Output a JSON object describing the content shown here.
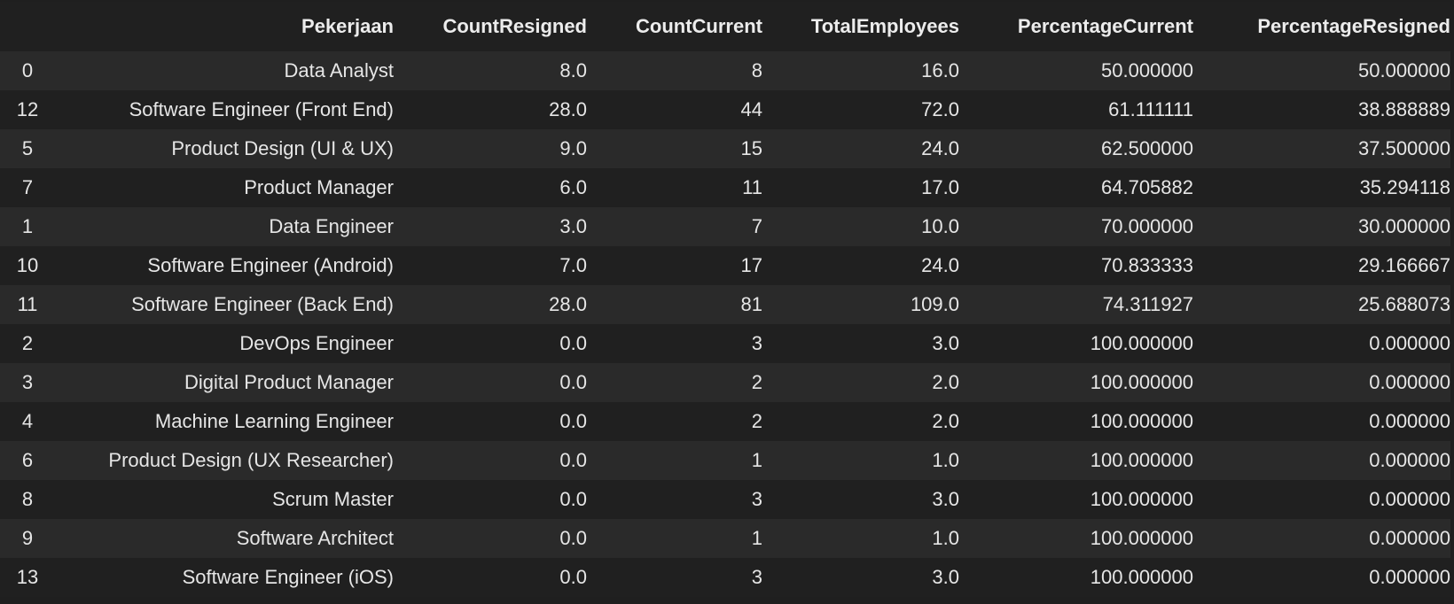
{
  "table": {
    "columns": [
      "",
      "Pekerjaan",
      "CountResigned",
      "CountCurrent",
      "TotalEmployees",
      "PercentageCurrent",
      "PercentageResigned"
    ],
    "rows": [
      {
        "index": "0",
        "job": "Data Analyst",
        "resigned": "8.0",
        "current": "8",
        "total": "16.0",
        "pct_current": "50.000000",
        "pct_resigned": "50.000000"
      },
      {
        "index": "12",
        "job": "Software Engineer (Front End)",
        "resigned": "28.0",
        "current": "44",
        "total": "72.0",
        "pct_current": "61.111111",
        "pct_resigned": "38.888889"
      },
      {
        "index": "5",
        "job": "Product Design (UI & UX)",
        "resigned": "9.0",
        "current": "15",
        "total": "24.0",
        "pct_current": "62.500000",
        "pct_resigned": "37.500000"
      },
      {
        "index": "7",
        "job": "Product Manager",
        "resigned": "6.0",
        "current": "11",
        "total": "17.0",
        "pct_current": "64.705882",
        "pct_resigned": "35.294118"
      },
      {
        "index": "1",
        "job": "Data Engineer",
        "resigned": "3.0",
        "current": "7",
        "total": "10.0",
        "pct_current": "70.000000",
        "pct_resigned": "30.000000"
      },
      {
        "index": "10",
        "job": "Software Engineer (Android)",
        "resigned": "7.0",
        "current": "17",
        "total": "24.0",
        "pct_current": "70.833333",
        "pct_resigned": "29.166667"
      },
      {
        "index": "11",
        "job": "Software Engineer (Back End)",
        "resigned": "28.0",
        "current": "81",
        "total": "109.0",
        "pct_current": "74.311927",
        "pct_resigned": "25.688073"
      },
      {
        "index": "2",
        "job": "DevOps Engineer",
        "resigned": "0.0",
        "current": "3",
        "total": "3.0",
        "pct_current": "100.000000",
        "pct_resigned": "0.000000"
      },
      {
        "index": "3",
        "job": "Digital Product Manager",
        "resigned": "0.0",
        "current": "2",
        "total": "2.0",
        "pct_current": "100.000000",
        "pct_resigned": "0.000000"
      },
      {
        "index": "4",
        "job": "Machine Learning Engineer",
        "resigned": "0.0",
        "current": "2",
        "total": "2.0",
        "pct_current": "100.000000",
        "pct_resigned": "0.000000"
      },
      {
        "index": "6",
        "job": "Product Design (UX Researcher)",
        "resigned": "0.0",
        "current": "1",
        "total": "1.0",
        "pct_current": "100.000000",
        "pct_resigned": "0.000000"
      },
      {
        "index": "8",
        "job": "Scrum Master",
        "resigned": "0.0",
        "current": "3",
        "total": "3.0",
        "pct_current": "100.000000",
        "pct_resigned": "0.000000"
      },
      {
        "index": "9",
        "job": "Software Architect",
        "resigned": "0.0",
        "current": "1",
        "total": "1.0",
        "pct_current": "100.000000",
        "pct_resigned": "0.000000"
      },
      {
        "index": "13",
        "job": "Software Engineer (iOS)",
        "resigned": "0.0",
        "current": "3",
        "total": "3.0",
        "pct_current": "100.000000",
        "pct_resigned": "0.000000"
      }
    ]
  }
}
